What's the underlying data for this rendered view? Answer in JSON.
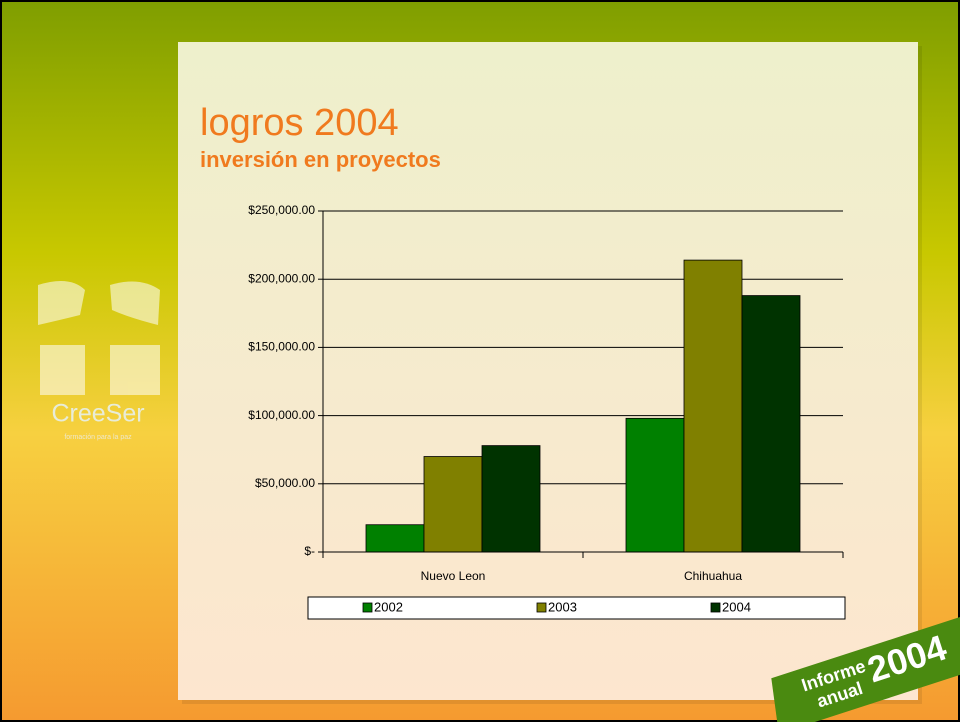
{
  "chart_data": {
    "type": "bar",
    "title": "logros 2004",
    "subtitle": "inversión en proyectos",
    "categories": [
      "Nuevo Leon",
      "Chihuahua"
    ],
    "series": [
      {
        "name": "2002",
        "color": "#008000",
        "values": [
          20000,
          98000
        ]
      },
      {
        "name": "2003",
        "color": "#808000",
        "values": [
          70000,
          214000
        ]
      },
      {
        "name": "2004",
        "color": "#003300",
        "values": [
          78000,
          188000
        ]
      }
    ],
    "ylim": [
      0,
      250000
    ],
    "yticks": [
      {
        "value": 0,
        "label": "$-"
      },
      {
        "value": 50000,
        "label": "$50,000.00"
      },
      {
        "value": 100000,
        "label": "$100,000.00"
      },
      {
        "value": 150000,
        "label": "$150,000.00"
      },
      {
        "value": 200000,
        "label": "$200,000.00"
      },
      {
        "value": 250000,
        "label": "$250,000.00"
      }
    ],
    "grid": true,
    "legend": "bottom"
  },
  "branding": {
    "logo": "CreeSer",
    "tagline": "formación para la paz",
    "badge": [
      "Informe",
      "anual",
      "2004"
    ]
  }
}
